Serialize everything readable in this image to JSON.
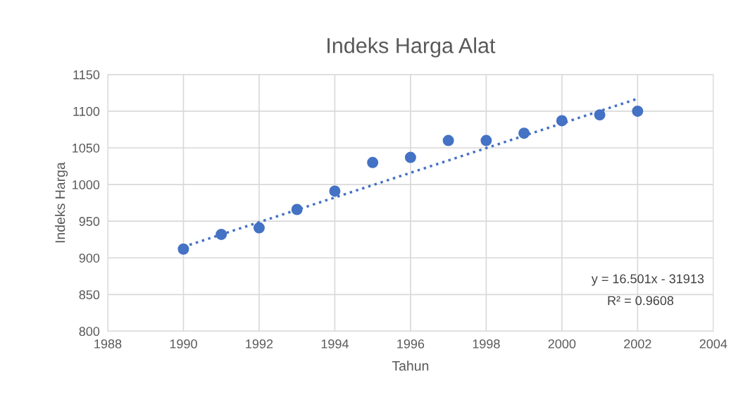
{
  "chart_data": {
    "type": "scatter",
    "title": "Indeks Harga Alat",
    "xlabel": "Tahun",
    "ylabel": "Indeks Harga",
    "x": [
      1990,
      1991,
      1992,
      1993,
      1994,
      1995,
      1996,
      1997,
      1998,
      1999,
      2000,
      2001,
      2002
    ],
    "series": [
      {
        "color": "#4472c4",
        "marker": "circle",
        "values": [
          912,
          932,
          941,
          966,
          991,
          1030,
          1037,
          1060,
          1060,
          1070,
          1087,
          1095,
          1100
        ]
      },
      {
        "type": "line",
        "color": "#4472c4",
        "marker": "none",
        "line_style": "dotted",
        "x": [
          1990,
          2002
        ],
        "values": [
          915,
          1117
        ]
      }
    ],
    "xlim": [
      1988,
      2004
    ],
    "xticks": [
      1988,
      1990,
      1992,
      1994,
      1996,
      1998,
      2000,
      2002,
      2004
    ],
    "ylim": [
      800,
      1150
    ],
    "yticks": [
      800,
      850,
      900,
      950,
      1000,
      1050,
      1100,
      1150
    ],
    "grid": true,
    "annotations": [
      "y = 16.501x - 31913",
      "R² = 0.9608"
    ]
  }
}
